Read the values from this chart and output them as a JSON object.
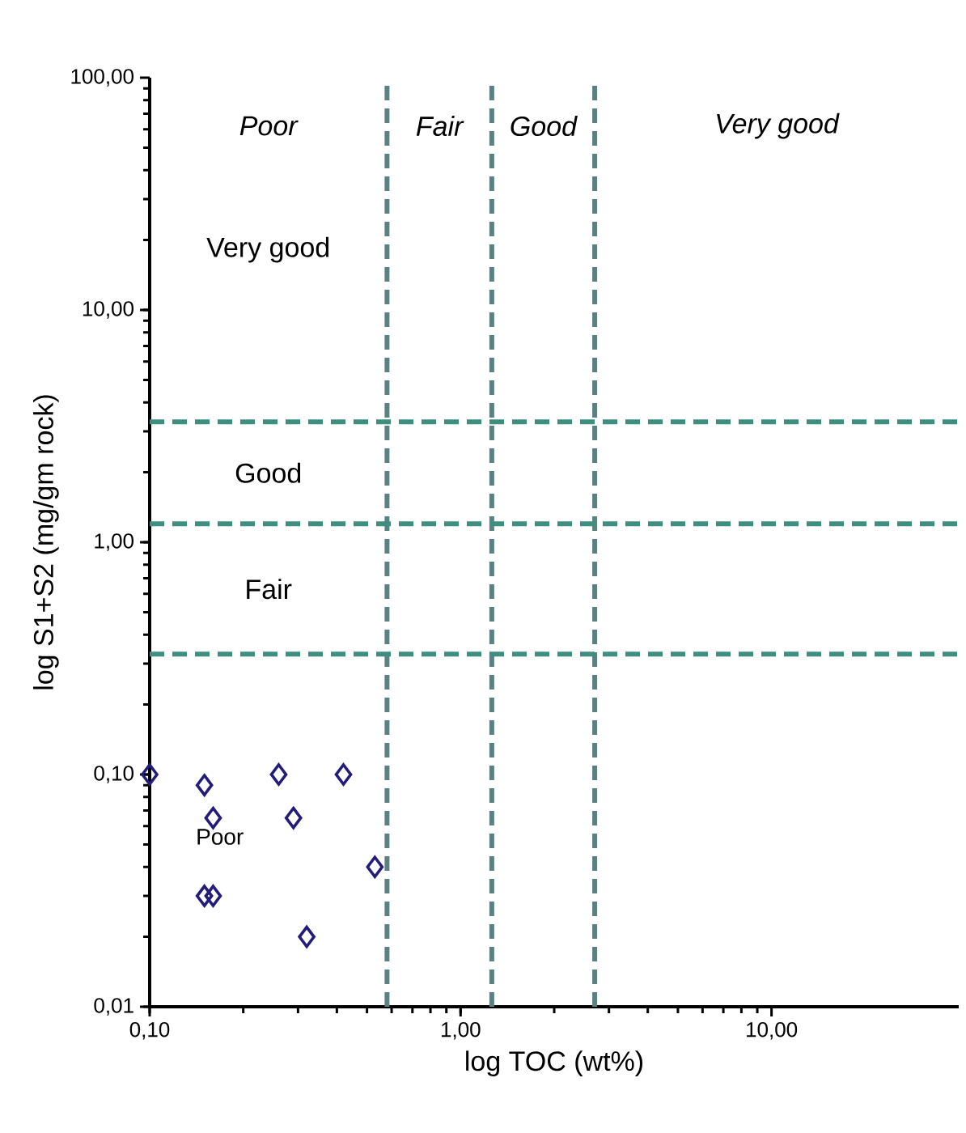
{
  "chart_data": {
    "type": "scatter",
    "xlabel": "log TOC (wt%)",
    "ylabel": "log S1+S2 (mg/gm rock)",
    "log": "xy",
    "xlim": [
      0.1,
      40
    ],
    "ylim": [
      0.01,
      100
    ],
    "xticks": [
      {
        "value": 0.1,
        "label": "0,10"
      },
      {
        "value": 1,
        "label": "1,00"
      },
      {
        "value": 10,
        "label": "10,00"
      }
    ],
    "yticks": [
      {
        "value": 0.01,
        "label": "0,01"
      },
      {
        "value": 0.1,
        "label": "0,10"
      },
      {
        "value": 1,
        "label": "1,00"
      },
      {
        "value": 10,
        "label": "10,00"
      },
      {
        "value": 100,
        "label": "100,00"
      }
    ],
    "series": [
      {
        "color": "#231c7a",
        "x": [
          0.1,
          0.15,
          0.16,
          0.15,
          0.16,
          0.26,
          0.29,
          0.32,
          0.42,
          0.53
        ],
        "values": [
          0.1,
          0.09,
          0.065,
          0.03,
          0.03,
          0.1,
          0.065,
          0.02,
          0.1,
          0.04
        ]
      }
    ],
    "marker": "diamond",
    "grid": false,
    "ref_lines": [
      {
        "axis": "x",
        "value": 0.58,
        "color": "#5a8282",
        "line_style": "dashed"
      },
      {
        "axis": "x",
        "value": 1.26,
        "color": "#5a8282",
        "line_style": "dashed"
      },
      {
        "axis": "x",
        "value": 2.7,
        "color": "#5a8282",
        "line_style": "dashed"
      },
      {
        "axis": "y",
        "value": 0.33,
        "color": "#3f8f80",
        "line_style": "dashed"
      },
      {
        "axis": "y",
        "value": 1.2,
        "color": "#3f8f80",
        "line_style": "dashed"
      },
      {
        "axis": "y",
        "value": 3.3,
        "color": "#3f8f80",
        "line_style": "dashed"
      }
    ],
    "annotations": [
      "Poor",
      "Fair",
      "Good",
      "Very good",
      "Very good",
      "Good",
      "Fair",
      "Poor"
    ]
  }
}
